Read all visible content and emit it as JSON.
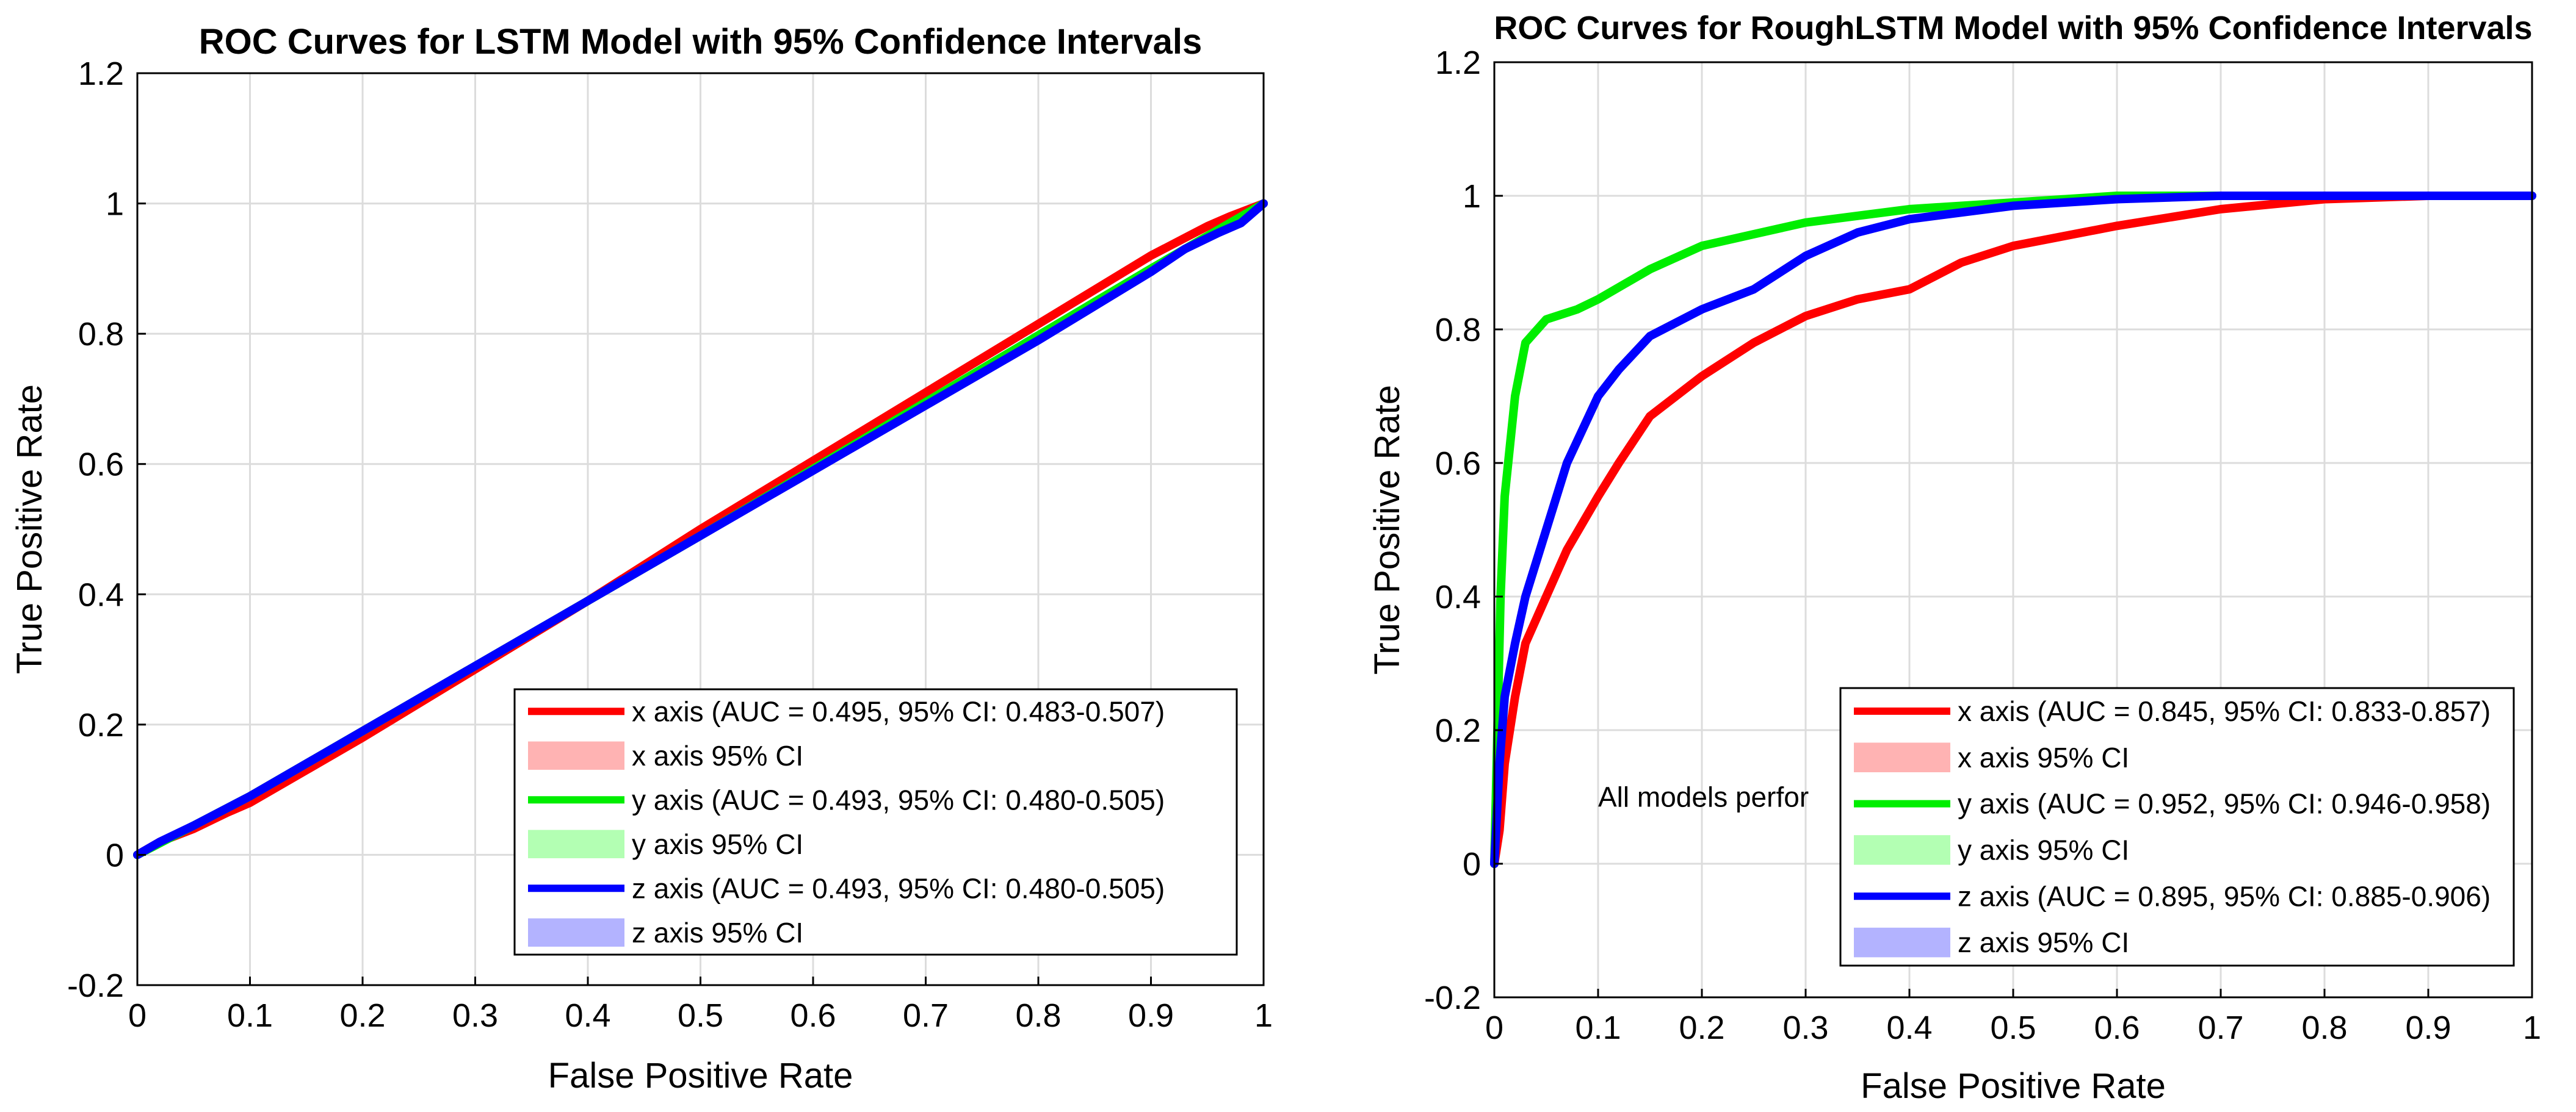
{
  "chart_data": [
    {
      "type": "line",
      "title": "ROC Curves for LSTM Model with 95% Confidence Intervals",
      "xlabel": "False Positive Rate",
      "ylabel": "True Positive Rate",
      "xlim": [
        0,
        1
      ],
      "ylim": [
        -0.2,
        1.2
      ],
      "xticks": [
        0,
        0.1,
        0.2,
        0.3,
        0.4,
        0.5,
        0.6,
        0.7,
        0.8,
        0.9,
        1
      ],
      "xtick_labels": [
        "0",
        "0.1",
        "0.2",
        "0.3",
        "0.4",
        "0.5",
        "0.6",
        "0.7",
        "0.8",
        "0.9",
        "1"
      ],
      "yticks": [
        -0.2,
        0,
        0.2,
        0.4,
        0.6,
        0.8,
        1,
        1.2
      ],
      "ytick_labels": [
        "-0.2",
        "0",
        "0.2",
        "0.4",
        "0.6",
        "0.8",
        "1",
        "1.2"
      ],
      "grid": true,
      "legend_position": "bottom-right",
      "series": [
        {
          "name": "x axis (AUC = 0.495, 95% CI: 0.483-0.507)",
          "ci_label": "x axis 95% CI",
          "color": "#ff0000",
          "ci_color": "#ffb3b3",
          "x": [
            0,
            0.02,
            0.05,
            0.08,
            0.1,
            0.2,
            0.3,
            0.4,
            0.5,
            0.6,
            0.7,
            0.8,
            0.9,
            0.95,
            0.97,
            1
          ],
          "y": [
            0,
            0.02,
            0.04,
            0.065,
            0.08,
            0.18,
            0.285,
            0.39,
            0.5,
            0.605,
            0.71,
            0.815,
            0.92,
            0.965,
            0.98,
            1
          ]
        },
        {
          "name": "y axis (AUC = 0.493, 95% CI: 0.480-0.505)",
          "ci_label": "y axis 95% CI",
          "color": "#00ee00",
          "ci_color": "#b3ffb3",
          "x": [
            0,
            0.05,
            0.1,
            0.3,
            0.5,
            0.7,
            0.9,
            0.95,
            1
          ],
          "y": [
            0,
            0.045,
            0.09,
            0.29,
            0.49,
            0.695,
            0.9,
            0.95,
            1
          ]
        },
        {
          "name": "z axis (AUC = 0.493, 95% CI: 0.480-0.505)",
          "ci_label": "z axis 95% CI",
          "color": "#0000ff",
          "ci_color": "#b3b3ff",
          "x": [
            0,
            0.02,
            0.05,
            0.1,
            0.2,
            0.3,
            0.4,
            0.5,
            0.6,
            0.7,
            0.8,
            0.9,
            0.93,
            0.96,
            0.98,
            1
          ],
          "y": [
            0,
            0.02,
            0.045,
            0.09,
            0.19,
            0.29,
            0.39,
            0.49,
            0.59,
            0.69,
            0.79,
            0.895,
            0.93,
            0.955,
            0.97,
            1
          ]
        }
      ]
    },
    {
      "type": "line",
      "title": "ROC Curves for RoughLSTM Model with 95% Confidence Intervals",
      "xlabel": "False Positive Rate",
      "ylabel": "True Positive Rate",
      "xlim": [
        0,
        1
      ],
      "ylim": [
        -0.2,
        1.2
      ],
      "xticks": [
        0,
        0.1,
        0.2,
        0.3,
        0.4,
        0.5,
        0.6,
        0.7,
        0.8,
        0.9,
        1
      ],
      "xtick_labels": [
        "0",
        "0.1",
        "0.2",
        "0.3",
        "0.4",
        "0.5",
        "0.6",
        "0.7",
        "0.8",
        "0.9",
        "1"
      ],
      "yticks": [
        -0.2,
        0,
        0.2,
        0.4,
        0.6,
        0.8,
        1,
        1.2
      ],
      "ytick_labels": [
        "-0.2",
        "0",
        "0.2",
        "0.4",
        "0.6",
        "0.8",
        "1",
        "1.2"
      ],
      "grid": true,
      "legend_position": "bottom-right",
      "annotation": "All models perfor",
      "annotation_at": [
        0.1,
        0.1
      ],
      "series": [
        {
          "name": "x axis (AUC = 0.845, 95% CI: 0.833-0.857)",
          "ci_label": "x axis 95% CI",
          "color": "#ff0000",
          "ci_color": "#ffb3b3",
          "x": [
            0,
            0.005,
            0.01,
            0.02,
            0.03,
            0.05,
            0.07,
            0.1,
            0.12,
            0.15,
            0.2,
            0.25,
            0.3,
            0.35,
            0.4,
            0.45,
            0.5,
            0.6,
            0.7,
            0.8,
            0.9,
            1
          ],
          "y": [
            0,
            0.05,
            0.15,
            0.25,
            0.33,
            0.4,
            0.47,
            0.55,
            0.6,
            0.67,
            0.73,
            0.78,
            0.82,
            0.845,
            0.86,
            0.9,
            0.925,
            0.955,
            0.98,
            0.995,
            1,
            1
          ]
        },
        {
          "name": "y axis (AUC = 0.952, 95% CI: 0.946-0.958)",
          "ci_label": "y axis 95% CI",
          "color": "#00ee00",
          "ci_color": "#b3ffb3",
          "x": [
            0,
            0.003,
            0.006,
            0.01,
            0.02,
            0.03,
            0.05,
            0.08,
            0.1,
            0.15,
            0.2,
            0.3,
            0.4,
            0.5,
            0.6,
            0.7,
            1
          ],
          "y": [
            0,
            0.2,
            0.4,
            0.55,
            0.7,
            0.78,
            0.815,
            0.83,
            0.845,
            0.89,
            0.925,
            0.96,
            0.98,
            0.99,
            1,
            1,
            1
          ]
        },
        {
          "name": "z axis (AUC = 0.895, 95% CI: 0.885-0.906)",
          "ci_label": "z axis 95% CI",
          "color": "#0000ff",
          "ci_color": "#b3b3ff",
          "x": [
            0,
            0.005,
            0.01,
            0.02,
            0.03,
            0.05,
            0.07,
            0.1,
            0.12,
            0.15,
            0.2,
            0.25,
            0.3,
            0.35,
            0.4,
            0.5,
            0.6,
            0.7,
            1
          ],
          "y": [
            0,
            0.15,
            0.25,
            0.33,
            0.4,
            0.5,
            0.6,
            0.7,
            0.74,
            0.79,
            0.83,
            0.86,
            0.91,
            0.945,
            0.965,
            0.985,
            0.995,
            1,
            1
          ]
        }
      ]
    }
  ]
}
